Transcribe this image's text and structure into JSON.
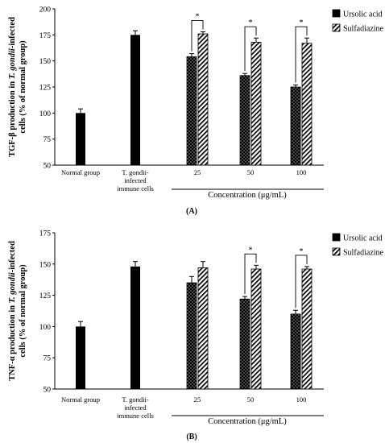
{
  "colors": {
    "solid": "#000000",
    "hatch": "#000000",
    "background": "#ffffff"
  },
  "chart_data": [
    {
      "type": "bar",
      "panel_label": "(A)",
      "ylabel_parts": [
        "TGF-β production in ",
        "T. gondii",
        "-infected cells (% of normal group)"
      ],
      "ylim": [
        50,
        200
      ],
      "yticks": [
        50,
        75,
        100,
        125,
        150,
        175,
        200
      ],
      "xlabel": "Concentration (μg/mL)",
      "categories": [
        {
          "lines": [
            "Normal group"
          ]
        },
        {
          "lines": [
            "T. gondii-",
            "infected",
            "immune cells"
          ]
        },
        {
          "lines": [
            "25"
          ]
        },
        {
          "lines": [
            "50"
          ]
        },
        {
          "lines": [
            "100"
          ]
        }
      ],
      "controls": [
        {
          "category": 0,
          "value": 100,
          "error": 4
        },
        {
          "category": 1,
          "value": 175,
          "error": 4
        }
      ],
      "series": [
        {
          "name": "Ursolic acid",
          "pattern": "dots",
          "values": [
            null,
            null,
            154,
            136,
            125
          ],
          "errors": [
            null,
            null,
            3,
            2,
            2
          ]
        },
        {
          "name": "Sulfadiazine",
          "pattern": "hatch",
          "values": [
            null,
            null,
            176,
            168,
            167
          ],
          "errors": [
            null,
            null,
            2,
            4,
            5
          ]
        }
      ],
      "significance": [
        {
          "category": 2,
          "label": "*"
        },
        {
          "category": 3,
          "label": "*"
        },
        {
          "category": 4,
          "label": "*"
        }
      ],
      "grid": false,
      "legend_position": "top-right"
    },
    {
      "type": "bar",
      "panel_label": "(B)",
      "ylabel_parts": [
        "TNF-α production in ",
        "T. gondii",
        "-infected cells (% of normal group)"
      ],
      "ylim": [
        50,
        175
      ],
      "yticks": [
        50,
        75,
        100,
        125,
        150,
        175
      ],
      "xlabel": "Concentration (μg/mL)",
      "categories": [
        {
          "lines": [
            "Normal group"
          ]
        },
        {
          "lines": [
            "T. gondii-",
            "infected",
            "immune cells"
          ]
        },
        {
          "lines": [
            "25"
          ]
        },
        {
          "lines": [
            "50"
          ]
        },
        {
          "lines": [
            "100"
          ]
        }
      ],
      "controls": [
        {
          "category": 0,
          "value": 100,
          "error": 4
        },
        {
          "category": 1,
          "value": 148,
          "error": 4
        }
      ],
      "series": [
        {
          "name": "Ursolic acid",
          "pattern": "dots",
          "values": [
            null,
            null,
            135,
            122,
            110
          ],
          "errors": [
            null,
            null,
            5,
            2,
            3
          ]
        },
        {
          "name": "Sulfadiazine",
          "pattern": "hatch",
          "values": [
            null,
            null,
            147,
            146,
            146
          ],
          "errors": [
            null,
            null,
            5,
            3,
            2
          ]
        }
      ],
      "significance": [
        {
          "category": 3,
          "label": "*"
        },
        {
          "category": 4,
          "label": "*"
        }
      ],
      "grid": false,
      "legend_position": "top-right"
    }
  ]
}
